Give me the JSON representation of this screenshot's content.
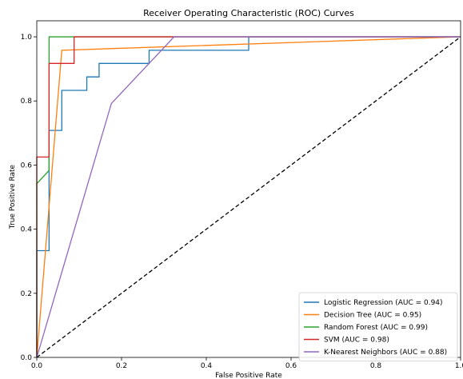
{
  "chart_data": {
    "type": "line",
    "title": "Receiver Operating Characteristic (ROC) Curves",
    "xlabel": "False Positive Rate",
    "ylabel": "True Positive Rate",
    "xlim": [
      0.0,
      1.0
    ],
    "ylim": [
      0.0,
      1.05
    ],
    "x_ticks": [
      0.0,
      0.2,
      0.4,
      0.6,
      0.8,
      1.0
    ],
    "x_tick_labels": [
      "0.0",
      "0.2",
      "0.4",
      "0.6",
      "0.8",
      "1.0"
    ],
    "y_ticks": [
      0.0,
      0.2,
      0.4,
      0.6,
      0.8,
      1.0
    ],
    "y_tick_labels": [
      "0.0",
      "0.2",
      "0.4",
      "0.6",
      "0.8",
      "1.0"
    ],
    "grid": false,
    "legend_position": "bottom-right",
    "series": [
      {
        "name": "Logistic Regression (AUC = 0.94)",
        "color": "#1f77b4",
        "points": [
          [
            0,
            0
          ],
          [
            0,
            0.333
          ],
          [
            0.029,
            0.333
          ],
          [
            0.029,
            0.708
          ],
          [
            0.059,
            0.708
          ],
          [
            0.059,
            0.833
          ],
          [
            0.118,
            0.833
          ],
          [
            0.118,
            0.875
          ],
          [
            0.147,
            0.875
          ],
          [
            0.147,
            0.917
          ],
          [
            0.265,
            0.917
          ],
          [
            0.265,
            0.958
          ],
          [
            0.5,
            0.958
          ],
          [
            0.5,
            1.0
          ],
          [
            1.0,
            1.0
          ]
        ]
      },
      {
        "name": "Decision Tree (AUC = 0.95)",
        "color": "#ff7f0e",
        "points": [
          [
            0,
            0
          ],
          [
            0.059,
            0.958
          ],
          [
            1.0,
            1.0
          ]
        ]
      },
      {
        "name": "Random Forest (AUC = 0.99)",
        "color": "#2ca02c",
        "points": [
          [
            0,
            0
          ],
          [
            0,
            0.542
          ],
          [
            0.029,
            0.583
          ],
          [
            0.029,
            1.0
          ],
          [
            1.0,
            1.0
          ]
        ]
      },
      {
        "name": "SVM (AUC = 0.98)",
        "color": "#d62728",
        "points": [
          [
            0,
            0
          ],
          [
            0,
            0.625
          ],
          [
            0.029,
            0.625
          ],
          [
            0.029,
            0.917
          ],
          [
            0.088,
            0.917
          ],
          [
            0.088,
            1.0
          ],
          [
            1.0,
            1.0
          ]
        ]
      },
      {
        "name": "K-Nearest Neighbors (AUC = 0.88)",
        "color": "#9467bd",
        "points": [
          [
            0,
            0
          ],
          [
            0.176,
            0.792
          ],
          [
            0.324,
            1.0
          ],
          [
            1.0,
            1.0
          ]
        ]
      }
    ],
    "reference_line": {
      "style": "dashed",
      "color": "#000000",
      "points": [
        [
          0,
          0
        ],
        [
          1,
          1
        ]
      ]
    }
  }
}
